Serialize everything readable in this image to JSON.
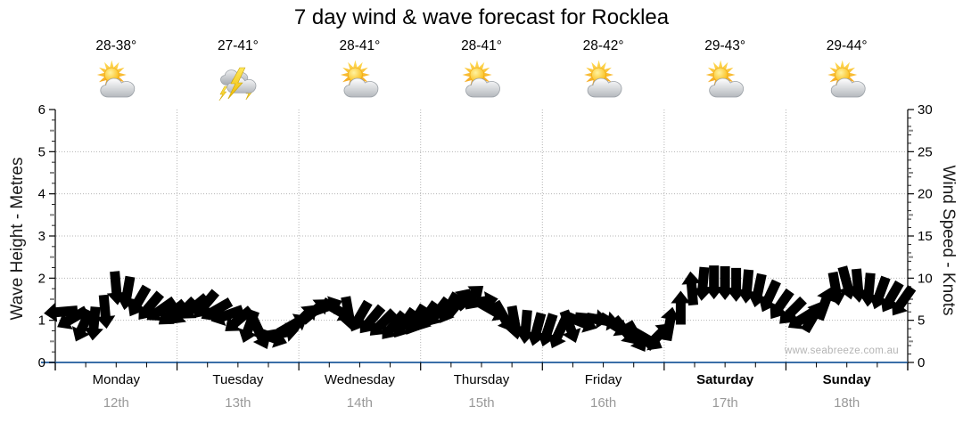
{
  "title": "7 day wind & wave forecast for Rocklea",
  "watermark": "www.seabreeze.com.au",
  "colors": {
    "arrow_fill": "#e80c0c",
    "arrow_stroke": "#333333",
    "axis_blue": "#3a6fa8",
    "grid": "#b5b5b5",
    "tick_black": "#222222",
    "tick_gray": "#8a8a8a",
    "date_gray": "#999999",
    "watermark_gray": "#b4b4b4"
  },
  "chart_data": {
    "type": "scatter",
    "subtype": "wind-direction-arrow-series",
    "title": "7 day wind & wave forecast for Rocklea",
    "grid": true,
    "legend": false,
    "left_axis": {
      "label": "Wave Height - Metres",
      "min": 0,
      "max": 6,
      "major_ticks": [
        0,
        1,
        2,
        3,
        4,
        5,
        6
      ]
    },
    "right_axis": {
      "label": "Wind Speed - Knots",
      "min": 0,
      "max": 30,
      "major_ticks": [
        0,
        5,
        10,
        15,
        20,
        25,
        30
      ]
    },
    "x_axis": {
      "days": [
        {
          "name": "Monday",
          "date": "12th",
          "temp": "28-38°",
          "icon": "sun-cloud",
          "bold": false
        },
        {
          "name": "Tuesday",
          "date": "13th",
          "temp": "27-41°",
          "icon": "storm",
          "bold": false
        },
        {
          "name": "Wednesday",
          "date": "14th",
          "temp": "28-41°",
          "icon": "sun-cloud",
          "bold": false
        },
        {
          "name": "Thursday",
          "date": "15th",
          "temp": "28-41°",
          "icon": "sun-cloud",
          "bold": false
        },
        {
          "name": "Friday",
          "date": "16th",
          "temp": "28-42°",
          "icon": "sun-cloud",
          "bold": false
        },
        {
          "name": "Saturday",
          "date": "17th",
          "temp": "29-43°",
          "icon": "sun-cloud",
          "bold": true
        },
        {
          "name": "Sunday",
          "date": "18th",
          "temp": "29-44°",
          "icon": "sun-cloud",
          "bold": true
        }
      ]
    },
    "wind_series": {
      "name": "Wind speed and direction",
      "units": "knots",
      "plotted_against": "right_axis",
      "point_format": [
        "day_fraction",
        "knots",
        "arrow_points_toward_deg"
      ],
      "points": [
        [
          0.045,
          6.0,
          265
        ],
        [
          0.136,
          5.2,
          240
        ],
        [
          0.227,
          4.3,
          205
        ],
        [
          0.318,
          4.6,
          185
        ],
        [
          0.409,
          6.0,
          175
        ],
        [
          0.5,
          8.8,
          175
        ],
        [
          0.591,
          8.2,
          190
        ],
        [
          0.682,
          7.2,
          210
        ],
        [
          0.773,
          6.6,
          220
        ],
        [
          0.864,
          6.2,
          235
        ],
        [
          0.955,
          5.8,
          230
        ],
        [
          1.045,
          6.0,
          225
        ],
        [
          1.136,
          6.5,
          230
        ],
        [
          1.227,
          6.8,
          220
        ],
        [
          1.318,
          6.2,
          240
        ],
        [
          1.409,
          5.6,
          250
        ],
        [
          1.5,
          5.0,
          230
        ],
        [
          1.591,
          4.2,
          200
        ],
        [
          1.682,
          3.4,
          155
        ],
        [
          1.773,
          3.0,
          110
        ],
        [
          1.864,
          3.5,
          80
        ],
        [
          1.955,
          4.5,
          60
        ],
        [
          2.045,
          5.4,
          45
        ],
        [
          2.136,
          6.2,
          50
        ],
        [
          2.227,
          6.6,
          70
        ],
        [
          2.318,
          6.2,
          120
        ],
        [
          2.409,
          5.8,
          170
        ],
        [
          2.5,
          5.4,
          210
        ],
        [
          2.591,
          5.0,
          220
        ],
        [
          2.682,
          4.6,
          225
        ],
        [
          2.773,
          4.3,
          220
        ],
        [
          2.864,
          4.6,
          215
        ],
        [
          2.955,
          5.0,
          212
        ],
        [
          3.045,
          5.4,
          215
        ],
        [
          3.136,
          5.9,
          218
        ],
        [
          3.227,
          6.4,
          210
        ],
        [
          3.318,
          7.2,
          40
        ],
        [
          3.409,
          7.8,
          50
        ],
        [
          3.5,
          7.2,
          80
        ],
        [
          3.591,
          6.2,
          120
        ],
        [
          3.682,
          5.4,
          150
        ],
        [
          3.773,
          4.7,
          170
        ],
        [
          3.864,
          4.2,
          185
        ],
        [
          3.955,
          3.9,
          195
        ],
        [
          4.045,
          3.8,
          198
        ],
        [
          4.136,
          3.5,
          205
        ],
        [
          4.227,
          4.2,
          160
        ],
        [
          4.318,
          4.8,
          112
        ],
        [
          4.409,
          5.2,
          95
        ],
        [
          4.5,
          5.0,
          100
        ],
        [
          4.591,
          4.4,
          122
        ],
        [
          4.682,
          3.7,
          140
        ],
        [
          4.773,
          3.0,
          150
        ],
        [
          4.864,
          2.7,
          120
        ],
        [
          4.955,
          3.2,
          45
        ],
        [
          5.045,
          4.6,
          10
        ],
        [
          5.136,
          6.5,
          0
        ],
        [
          5.227,
          8.8,
          355
        ],
        [
          5.318,
          9.3,
          185
        ],
        [
          5.409,
          9.5,
          180
        ],
        [
          5.5,
          9.4,
          180
        ],
        [
          5.591,
          9.2,
          180
        ],
        [
          5.682,
          9.0,
          185
        ],
        [
          5.773,
          8.5,
          192
        ],
        [
          5.864,
          7.8,
          205
        ],
        [
          5.955,
          6.8,
          215
        ],
        [
          6.045,
          6.0,
          225
        ],
        [
          6.136,
          5.2,
          238
        ],
        [
          6.227,
          5.5,
          30
        ],
        [
          6.318,
          7.0,
          20
        ],
        [
          6.409,
          8.7,
          170
        ],
        [
          6.5,
          9.4,
          165
        ],
        [
          6.591,
          9.1,
          175
        ],
        [
          6.682,
          8.6,
          185
        ],
        [
          6.773,
          8.2,
          200
        ],
        [
          6.864,
          7.7,
          210
        ],
        [
          6.955,
          7.2,
          215
        ]
      ]
    }
  }
}
